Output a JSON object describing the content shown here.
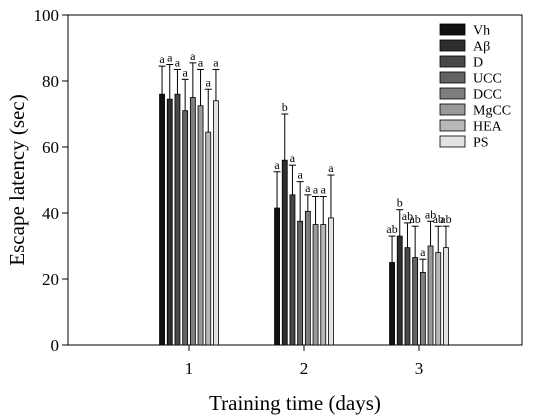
{
  "chart_data": {
    "type": "bar",
    "xlabel": "Training time (days)",
    "ylabel": "Escape latency (sec)",
    "ylim": [
      0,
      100
    ],
    "yticks": [
      0,
      20,
      40,
      60,
      80,
      100
    ],
    "categories": [
      "1",
      "2",
      "3"
    ],
    "grid": false,
    "legend_position": "top-right",
    "series": [
      {
        "name": "Vh",
        "color": "#111111",
        "values": [
          76,
          41.5,
          25
        ],
        "errors": [
          8.5,
          11,
          8
        ],
        "labels": [
          "a",
          "a",
          "ab"
        ]
      },
      {
        "name": "Aβ",
        "color": "#2e2e2e",
        "values": [
          74.5,
          56,
          33
        ],
        "errors": [
          10.5,
          14,
          8
        ],
        "labels": [
          "a",
          "b",
          "b"
        ]
      },
      {
        "name": "D",
        "color": "#484848",
        "values": [
          76,
          45.5,
          29.5
        ],
        "errors": [
          7.5,
          9,
          7.5
        ],
        "labels": [
          "a",
          "a",
          "ab"
        ]
      },
      {
        "name": "UCC",
        "color": "#626262",
        "values": [
          71,
          37.5,
          26.5
        ],
        "errors": [
          9.5,
          12,
          9.5
        ],
        "labels": [
          "a",
          "a",
          "ab"
        ]
      },
      {
        "name": "DCC",
        "color": "#7e7e7e",
        "values": [
          75,
          40.5,
          22
        ],
        "errors": [
          10.5,
          5,
          4
        ],
        "labels": [
          "a",
          "a",
          "a"
        ]
      },
      {
        "name": "MgCC",
        "color": "#9a9a9a",
        "values": [
          72.5,
          36.5,
          30
        ],
        "errors": [
          11,
          8.5,
          7.5
        ],
        "labels": [
          "a",
          "a",
          "ab"
        ]
      },
      {
        "name": "HEA",
        "color": "#b8b8b8",
        "values": [
          64.5,
          36.5,
          28
        ],
        "errors": [
          13,
          8.5,
          8
        ],
        "labels": [
          "a",
          "a",
          "ab"
        ]
      },
      {
        "name": "PS",
        "color": "#e2e2e2",
        "values": [
          74,
          38.5,
          29.5
        ],
        "errors": [
          9.5,
          13,
          6.5
        ],
        "labels": [
          "a",
          "a",
          "ab"
        ]
      }
    ]
  }
}
